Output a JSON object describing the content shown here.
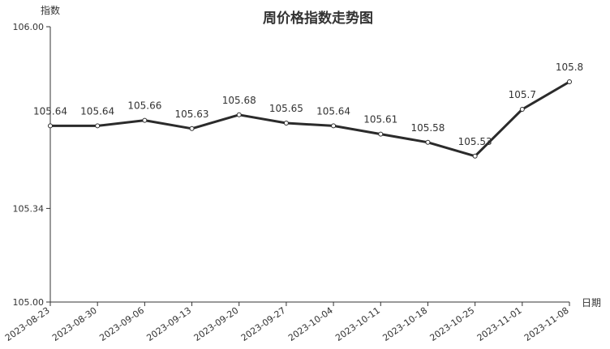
{
  "chart_data": {
    "type": "line",
    "title": "周价格指数走势图",
    "xlabel": "日期",
    "ylabel": "指数",
    "ylim": [
      105.0,
      106.0
    ],
    "yticks": [
      "105.00",
      "105.34",
      "106.00"
    ],
    "categories": [
      "2023-08-23",
      "2023-08-30",
      "2023-09-06",
      "2023-09-13",
      "2023-09-20",
      "2023-09-27",
      "2023-10-04",
      "2023-10-11",
      "2023-10-18",
      "2023-10-25",
      "2023-11-01",
      "2023-11-08"
    ],
    "values": [
      105.64,
      105.64,
      105.66,
      105.63,
      105.68,
      105.65,
      105.64,
      105.61,
      105.58,
      105.53,
      105.7,
      105.8
    ],
    "data_labels": [
      "105.64",
      "105.64",
      "105.66",
      "105.63",
      "105.68",
      "105.65",
      "105.64",
      "105.61",
      "105.58",
      "105.53",
      "105.7",
      "105.8"
    ],
    "grid": false,
    "legend": "none",
    "line_color": "#2b2b2b"
  }
}
